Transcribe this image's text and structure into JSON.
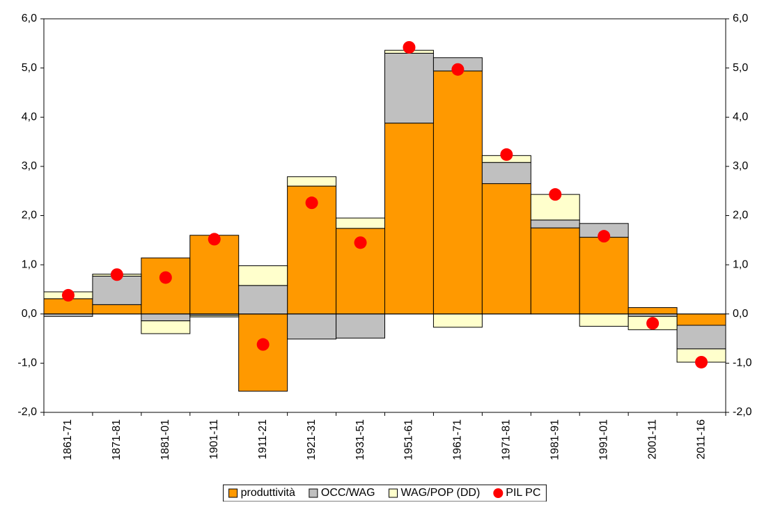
{
  "chart_data": {
    "type": "bar",
    "stacked": true,
    "categories": [
      "1861-71",
      "1871-81",
      "1881-01",
      "1901-11",
      "1911-21",
      "1921-31",
      "1931-51",
      "1951-61",
      "1961-71",
      "1971-81",
      "1981-91",
      "1991-01",
      "2001-11",
      "2011-16"
    ],
    "series": [
      {
        "name": "produttività",
        "type": "bar",
        "color": "#ff9900",
        "values": [
          0.31,
          0.19,
          1.14,
          1.6,
          -1.57,
          2.6,
          1.74,
          3.88,
          4.94,
          2.65,
          1.75,
          1.56,
          0.13,
          -0.23
        ]
      },
      {
        "name": "OCC/WAG",
        "type": "bar",
        "color": "#c0c0c0",
        "values": [
          -0.05,
          0.58,
          -0.14,
          -0.03,
          0.58,
          -0.51,
          -0.49,
          1.42,
          0.27,
          0.43,
          0.16,
          0.28,
          -0.05,
          -0.48
        ]
      },
      {
        "name": "WAG/POP (DD)",
        "type": "bar",
        "color": "#ffffcc",
        "values": [
          0.14,
          0.04,
          -0.26,
          -0.03,
          0.4,
          0.19,
          0.21,
          0.06,
          -0.27,
          0.14,
          0.52,
          -0.25,
          -0.27,
          -0.27
        ]
      },
      {
        "name": "PIL PC",
        "type": "scatter",
        "axis": "y2",
        "color": "#ff0000",
        "values": [
          0.38,
          0.8,
          0.74,
          1.52,
          -0.62,
          2.26,
          1.45,
          5.42,
          4.97,
          3.24,
          2.43,
          1.58,
          -0.19,
          -0.98
        ]
      }
    ],
    "ylim": [
      -2,
      6
    ],
    "yticks": [
      {
        "value": -2,
        "label": "-2,0"
      },
      {
        "value": -1,
        "label": "-1,0"
      },
      {
        "value": 0,
        "label": "0,0"
      },
      {
        "value": 1,
        "label": "1,0"
      },
      {
        "value": 2,
        "label": "2,0"
      },
      {
        "value": 3,
        "label": "3,0"
      },
      {
        "value": 4,
        "label": "4,0"
      },
      {
        "value": 5,
        "label": "5,0"
      },
      {
        "value": 6,
        "label": "6,0"
      }
    ],
    "y2lim": [
      -2,
      6
    ],
    "y2ticks": [
      {
        "value": -2,
        "label": "-2,0"
      },
      {
        "value": -1,
        "label": "-1,0"
      },
      {
        "value": 0,
        "label": "0,0"
      },
      {
        "value": 1,
        "label": "1,0"
      },
      {
        "value": 2,
        "label": "2,0"
      },
      {
        "value": 3,
        "label": "3,0"
      },
      {
        "value": 4,
        "label": "4,0"
      },
      {
        "value": 5,
        "label": "5,0"
      },
      {
        "value": 6,
        "label": "6,0"
      }
    ],
    "legend": "bottom",
    "grid": false
  }
}
